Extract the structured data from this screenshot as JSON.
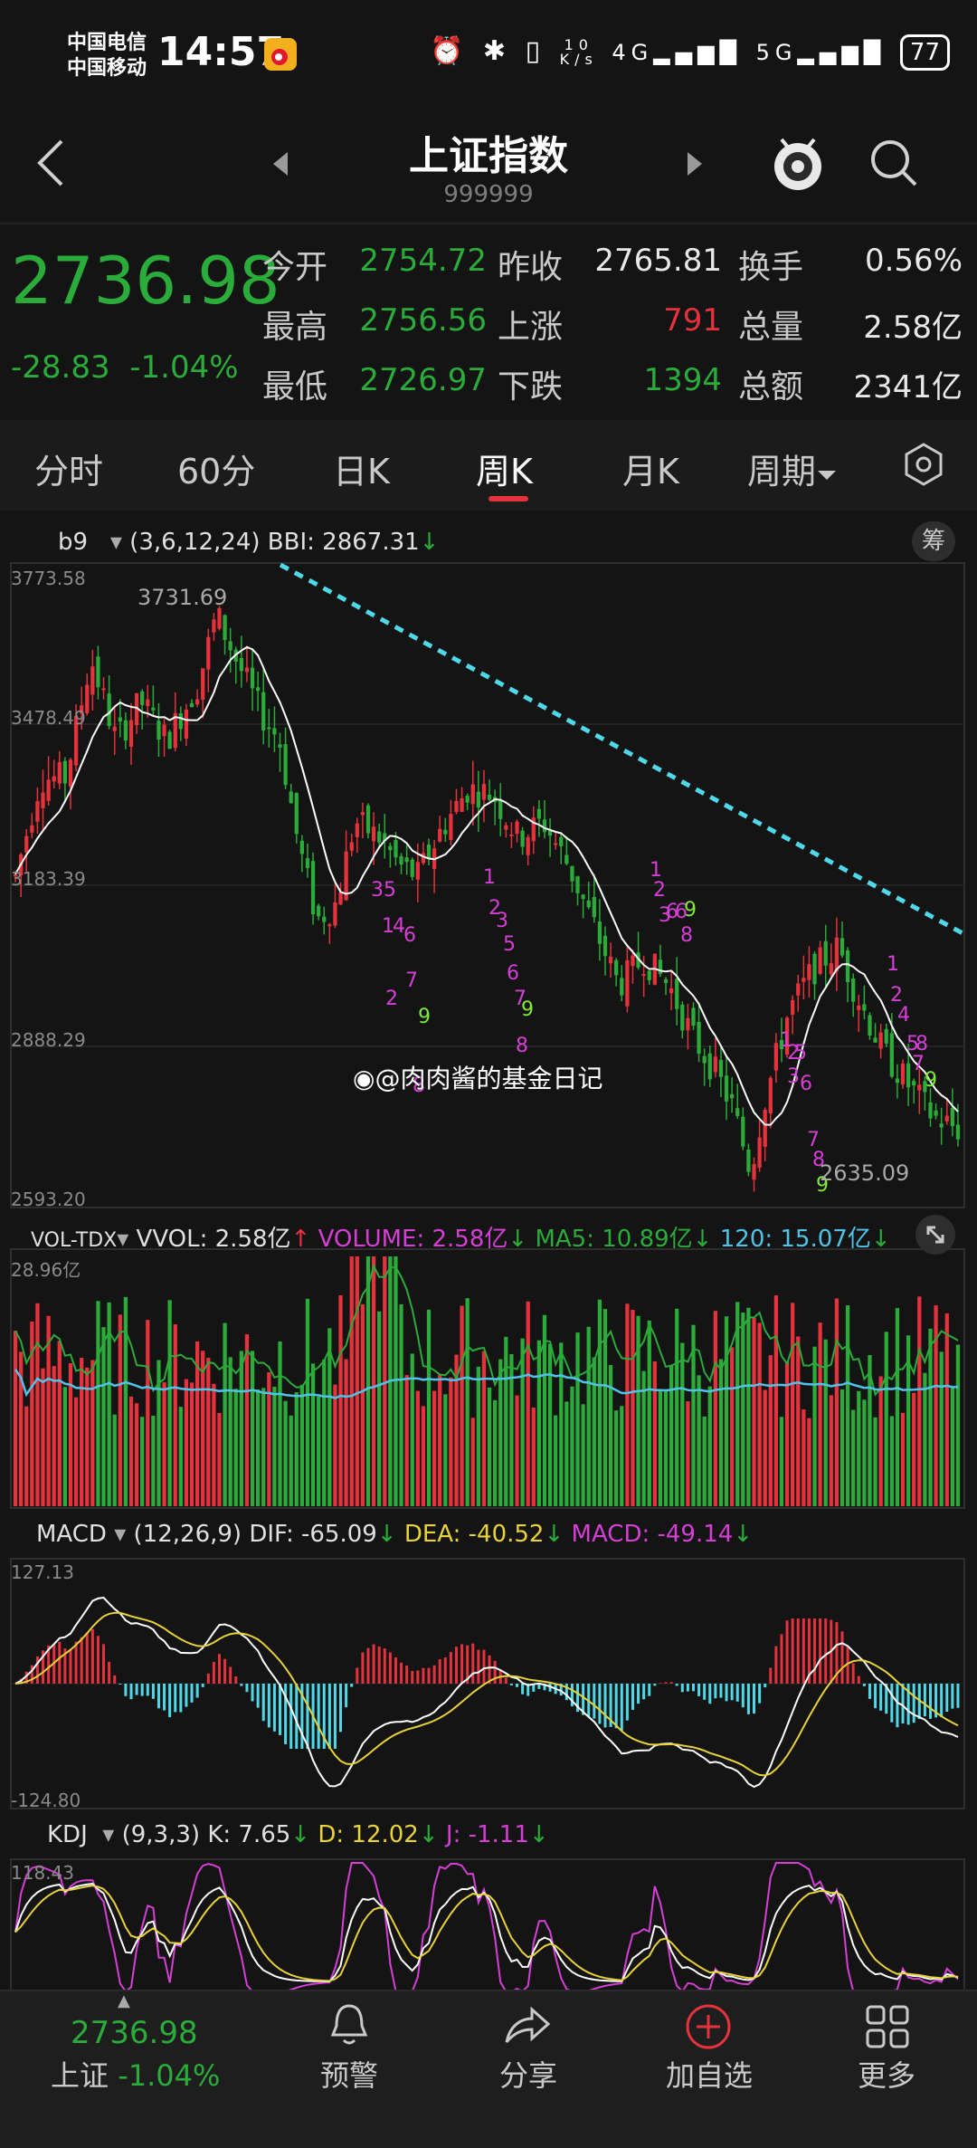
{
  "status_bar": {
    "carrier1": "中国电信",
    "carrier2": "中国移动",
    "time": "14:57",
    "net_speed_top": "10",
    "net_speed_bottom": "K/s",
    "battery": "77"
  },
  "nav": {
    "title": "上证指数",
    "code": "999999"
  },
  "quote": {
    "price": "2736.98",
    "change": "-28.83",
    "change_pct": "-1.04%",
    "rows": [
      {
        "l1": "今开",
        "v1": "2754.72",
        "l2": "昨收",
        "v2": "2765.81",
        "l3": "换手",
        "v3": "0.56%"
      },
      {
        "l1": "最高",
        "v1": "2756.56",
        "l2": "上涨",
        "v2": "791",
        "l3": "总量",
        "v3": "2.58亿"
      },
      {
        "l1": "最低",
        "v1": "2726.97",
        "l2": "下跌",
        "v2": "1394",
        "l3": "总额",
        "v3": "2341亿"
      }
    ]
  },
  "tabs": [
    "分时",
    "60分",
    "日K",
    "周K",
    "月K",
    "周期"
  ],
  "active_tab": "周K",
  "main_panel": {
    "indicator": "b9",
    "params": "(3,6,12,24)",
    "bbi": "BBI: 2867.31",
    "chip_button": "筹",
    "y_labels": [
      "3773.58",
      "3478.49",
      "3183.39",
      "2888.29",
      "2593.20"
    ],
    "high_label": "3731.69",
    "low_label": "2635.09",
    "watermark": "@肉肉酱的基金日记"
  },
  "vol_panel": {
    "name": "VOL-TDX",
    "vvol": "VVOL: 2.58亿",
    "volume": "VOLUME: 2.58亿",
    "ma5": "MA5: 10.89亿",
    "ma120": "120: 15.07亿",
    "y_top": "28.96亿"
  },
  "macd_panel": {
    "name": "MACD",
    "params": "(12,26,9)",
    "dif": "DIF: -65.09",
    "dea": "DEA: -40.52",
    "macd": "MACD: -49.14",
    "y_top": "127.13",
    "y_bottom": "-124.80"
  },
  "kdj_panel": {
    "name": "KDJ",
    "params": "(9,3,3)",
    "k": "K: 7.65",
    "d": "D: 12.02",
    "j": "J: -1.11",
    "y_top": "118.43"
  },
  "bottom_bar": {
    "price": "2736.98",
    "index_name": "上证",
    "pct": "-1.04%",
    "items": [
      "预警",
      "分享",
      "加自选",
      "更多"
    ]
  },
  "colors": {
    "up": "#e5323c",
    "down": "#2aab3a",
    "trendline": "#4fd8e8",
    "b9_markers": "#d63fd6",
    "nine_marker": "#7dea3d",
    "bbi_line": "#ffffff"
  },
  "chart_data": {
    "type": "candlestick",
    "period": "weekly",
    "price_axis": [
      2593.2,
      3773.58
    ],
    "annotated_high": 3731.69,
    "annotated_low": 2635.09,
    "last_close": 2736.98
  }
}
